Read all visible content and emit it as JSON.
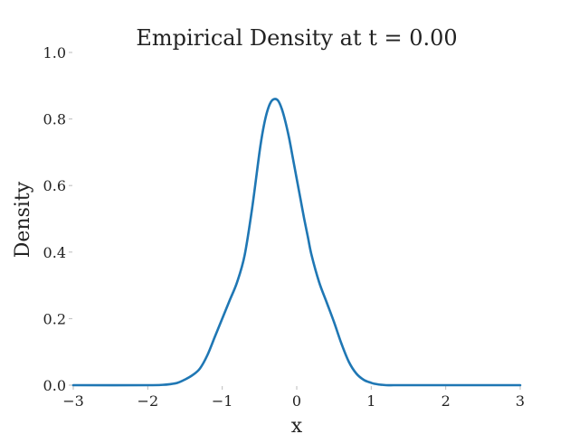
{
  "chart_data": {
    "type": "line",
    "title": "Empirical Density at t = 0.00",
    "xlabel": "x",
    "ylabel": "Density",
    "xlim": [
      -3,
      3
    ],
    "ylim": [
      0,
      1
    ],
    "x_ticks": [
      -3,
      -2,
      -1,
      0,
      1,
      2,
      3
    ],
    "x_tick_labels": [
      "−3",
      "−2",
      "−1",
      "0",
      "1",
      "2",
      "3"
    ],
    "y_ticks": [
      0,
      0.2,
      0.4,
      0.6,
      0.8,
      1.0
    ],
    "y_tick_labels": [
      "0.0",
      "0.2",
      "0.4",
      "0.6",
      "0.8",
      "1.0"
    ],
    "grid": false,
    "series": [
      {
        "color": "#1f77b4",
        "x": [
          -3.0,
          -2.0,
          -1.8,
          -1.7,
          -1.6,
          -1.5,
          -1.4,
          -1.3,
          -1.2,
          -1.1,
          -1.0,
          -0.9,
          -0.8,
          -0.7,
          -0.6,
          -0.5,
          -0.45,
          -0.4,
          -0.35,
          -0.3,
          -0.25,
          -0.2,
          -0.15,
          -0.1,
          -0.05,
          0.0,
          0.05,
          0.1,
          0.15,
          0.2,
          0.3,
          0.4,
          0.5,
          0.6,
          0.7,
          0.8,
          0.9,
          1.0,
          1.05,
          1.1,
          1.15,
          1.2,
          1.3,
          1.4,
          1.5,
          2.0,
          3.0
        ],
        "y": [
          0.0,
          0.0,
          0.001,
          0.003,
          0.007,
          0.017,
          0.03,
          0.05,
          0.09,
          0.145,
          0.2,
          0.255,
          0.31,
          0.39,
          0.53,
          0.7,
          0.77,
          0.82,
          0.85,
          0.86,
          0.855,
          0.83,
          0.79,
          0.74,
          0.68,
          0.62,
          0.56,
          0.5,
          0.445,
          0.39,
          0.31,
          0.25,
          0.19,
          0.125,
          0.07,
          0.035,
          0.016,
          0.007,
          0.004,
          0.002,
          0.001,
          0.0,
          0.0,
          0.0,
          0.0,
          0.0,
          0.0
        ]
      }
    ]
  }
}
